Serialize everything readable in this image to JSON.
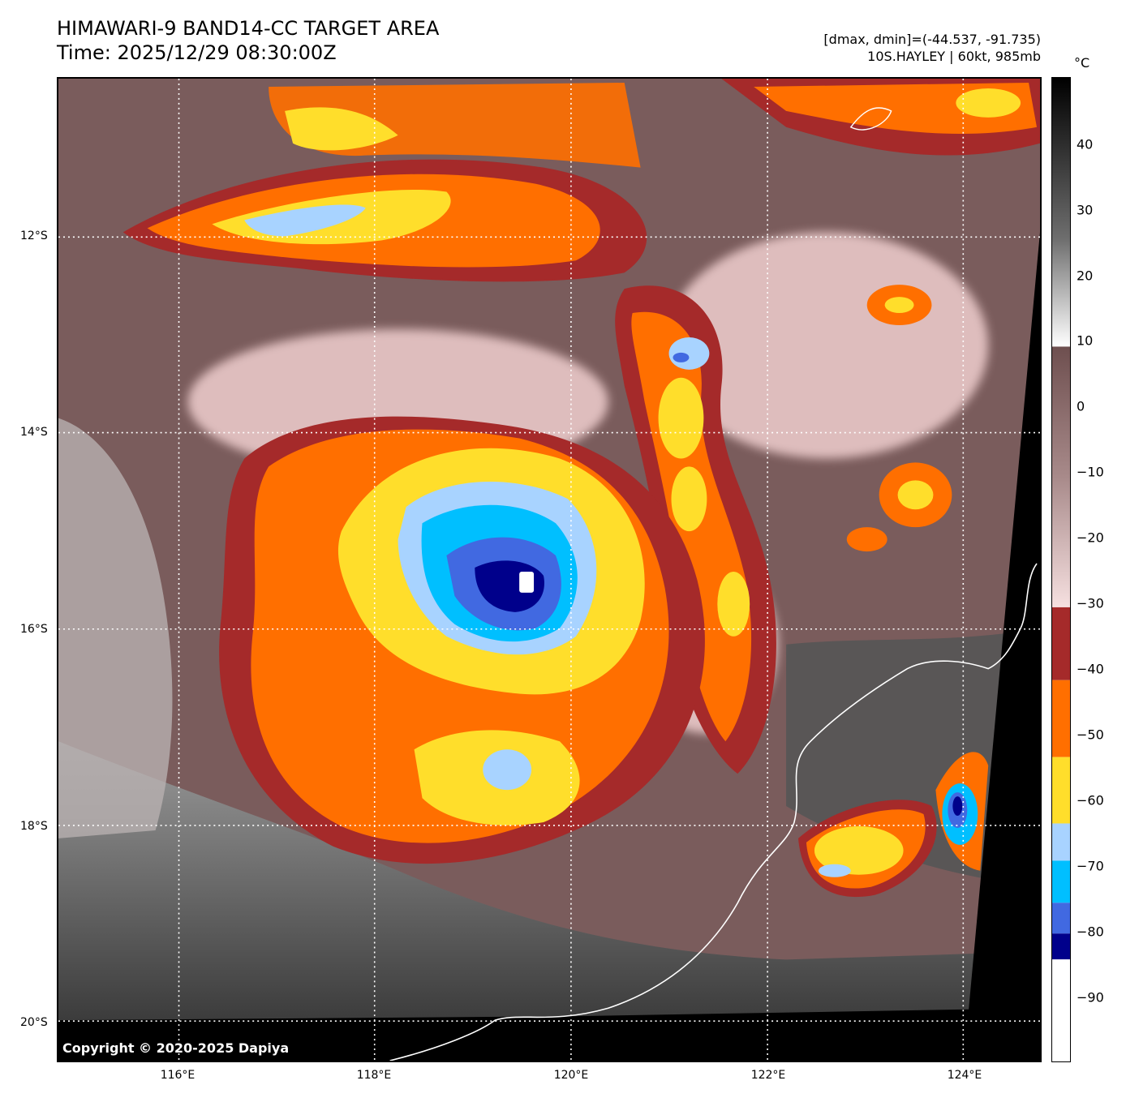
{
  "header": {
    "title_line1": "HIMAWARI-9 BAND14-CC TARGET AREA",
    "title_line2": "Time: 2025/12/29 08:30:00Z",
    "range_text": "[dmax, dmin]=(-44.537, -91.735)",
    "storm_text": "10S.HAYLEY | 60kt, 985mb"
  },
  "map": {
    "copyright": "Copyright © 2020-2025 Dapiya",
    "lat_labels": [
      "12°S",
      "14°S",
      "16°S",
      "18°S",
      "20°S"
    ],
    "lon_labels": [
      "116°E",
      "118°E",
      "120°E",
      "122°E",
      "124°E"
    ]
  },
  "colorbar": {
    "unit": "°C",
    "ticks": [
      "40",
      "30",
      "20",
      "10",
      "0",
      "−10",
      "−20",
      "−30",
      "−40",
      "−50",
      "−60",
      "−70",
      "−80",
      "−90"
    ],
    "colors": {
      "warm_top": "#000000",
      "warm_gray": "#808080",
      "white": "#ffffff",
      "brown": "#6e4f4f",
      "pink": "#f3d6d6",
      "dark_red": "#a52a2a",
      "orange": "#ff6f00",
      "yellow": "#ffde2b",
      "light_blue": "#a8d3ff",
      "deep_sky": "#00bfff",
      "royal_blue": "#4169e1",
      "navy": "#00008b"
    }
  }
}
